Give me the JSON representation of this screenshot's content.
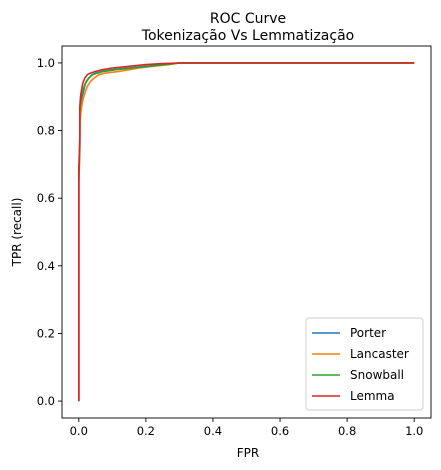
{
  "chart_data": {
    "type": "line",
    "title": "ROC Curve",
    "subtitle": "Tokenização Vs Lemmatização",
    "xlabel": "FPR",
    "ylabel": "TPR (recall)",
    "xlim": [
      -0.05,
      1.05
    ],
    "ylim": [
      -0.05,
      1.05
    ],
    "xticks": [
      "0.0",
      "0.2",
      "0.4",
      "0.6",
      "0.8",
      "1.0"
    ],
    "yticks": [
      "0.0",
      "0.2",
      "0.4",
      "0.6",
      "0.8",
      "1.0"
    ],
    "grid": false,
    "legend_position": "lower-right",
    "series": [
      {
        "name": "Porter",
        "color": "#1f77b4",
        "x": [
          0.0,
          0.0,
          0.003,
          0.003,
          0.006,
          0.01,
          0.015,
          0.02,
          0.03,
          0.04,
          0.05,
          0.07,
          0.1,
          0.15,
          0.2,
          0.25,
          0.3,
          0.4,
          0.6,
          1.0
        ],
        "y": [
          0.0,
          0.66,
          0.75,
          0.85,
          0.88,
          0.9,
          0.92,
          0.94,
          0.955,
          0.965,
          0.97,
          0.975,
          0.98,
          0.985,
          0.99,
          0.995,
          1.0,
          1.0,
          1.0,
          1.0
        ]
      },
      {
        "name": "Lancaster",
        "color": "#ff7f0e",
        "x": [
          0.0,
          0.0,
          0.003,
          0.004,
          0.007,
          0.012,
          0.018,
          0.025,
          0.035,
          0.045,
          0.06,
          0.08,
          0.12,
          0.18,
          0.22,
          0.27,
          0.3,
          0.4,
          0.6,
          1.0
        ],
        "y": [
          0.0,
          0.64,
          0.73,
          0.83,
          0.86,
          0.89,
          0.91,
          0.93,
          0.945,
          0.955,
          0.965,
          0.97,
          0.975,
          0.985,
          0.99,
          0.995,
          1.0,
          1.0,
          1.0,
          1.0
        ]
      },
      {
        "name": "Snowball",
        "color": "#2ca02c",
        "x": [
          0.0,
          0.0,
          0.003,
          0.003,
          0.006,
          0.01,
          0.016,
          0.022,
          0.03,
          0.04,
          0.055,
          0.075,
          0.11,
          0.16,
          0.21,
          0.26,
          0.3,
          0.4,
          0.6,
          1.0
        ],
        "y": [
          0.0,
          0.66,
          0.76,
          0.86,
          0.89,
          0.91,
          0.93,
          0.945,
          0.955,
          0.965,
          0.97,
          0.975,
          0.98,
          0.985,
          0.99,
          0.995,
          1.0,
          1.0,
          1.0,
          1.0
        ]
      },
      {
        "name": "Lemma",
        "color": "#d62728",
        "x": [
          0.0,
          0.0,
          0.003,
          0.003,
          0.005,
          0.008,
          0.012,
          0.018,
          0.025,
          0.035,
          0.05,
          0.07,
          0.1,
          0.15,
          0.2,
          0.25,
          0.31,
          0.4,
          0.6,
          1.0
        ],
        "y": [
          0.0,
          0.68,
          0.78,
          0.87,
          0.9,
          0.92,
          0.94,
          0.955,
          0.965,
          0.97,
          0.975,
          0.98,
          0.985,
          0.99,
          0.995,
          0.998,
          1.0,
          1.0,
          1.0,
          1.0
        ]
      }
    ]
  }
}
